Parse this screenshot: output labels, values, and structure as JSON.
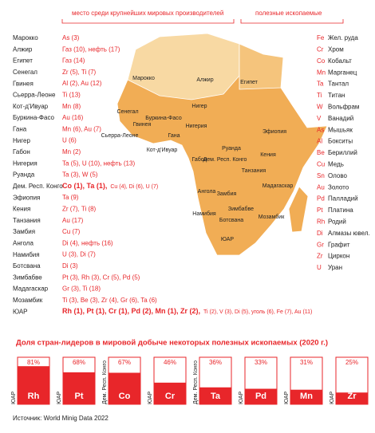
{
  "header": {
    "rank_note": "место среди крупнейших мировых производителей",
    "legend_title": "полезные ископаемые"
  },
  "countries": [
    {
      "name": "Марокко",
      "minerals": "As (3)"
    },
    {
      "name": "Алжир",
      "minerals": "Газ (10), нефть (17)"
    },
    {
      "name": "Египет",
      "minerals": "Газ (14)"
    },
    {
      "name": "Сенегал",
      "minerals": "Zr (5), Ti (7)"
    },
    {
      "name": "Гвинея",
      "minerals": "Al (2), Au (12)"
    },
    {
      "name": "Сьерра-Леоне",
      "minerals": "Ti (13)"
    },
    {
      "name": "Кот-д'Ивуар",
      "minerals": "Mn (8)"
    },
    {
      "name": "Буркина-Фасо",
      "minerals": "Au (16)"
    },
    {
      "name": "Гана",
      "minerals": "Mn (6), Au (7)"
    },
    {
      "name": "Нигер",
      "minerals": "U (6)"
    },
    {
      "name": "Габон",
      "minerals": "Mn (2)"
    },
    {
      "name": "Нигерия",
      "minerals": "Ta (5), U (10), нефть (13)"
    },
    {
      "name": "Руанда",
      "minerals": "Ta (3), W (5)"
    },
    {
      "name": "Дем. Респ. Конго",
      "major": "Co (1), Ta (1),",
      "minerals": "Cu (4), Di (6), U (7)"
    },
    {
      "name": "Эфиопия",
      "minerals": "Ta (9)"
    },
    {
      "name": "Кения",
      "minerals": "Zr (7), Ti (8)"
    },
    {
      "name": "Танзания",
      "minerals": "Au (17)"
    },
    {
      "name": "Замбия",
      "minerals": "Cu (7)"
    },
    {
      "name": "Ангола",
      "minerals": "Di (4), нефть (16)"
    },
    {
      "name": "Намибия",
      "minerals": "U (3), Di (7)"
    },
    {
      "name": "Ботсвана",
      "minerals": "Di (3)"
    },
    {
      "name": "Зимбабве",
      "minerals": "Pt (3), Rh (3), Cr (5), Pd (5)"
    },
    {
      "name": "Мадагаскар",
      "minerals": "Gr (3), Ti (18)"
    },
    {
      "name": "Мозамбик",
      "minerals": "Ti (3), Be (3), Zr (4), Gr (6), Ta (6)"
    },
    {
      "name": "ЮАР",
      "major": "Rh (1), Pt (1), Cr (1), Pd (2), Mn (1), Zr (2),",
      "minerals": "Ti (2), V (3), Di (5), уголь (6), Fe (7), Au (11)"
    }
  ],
  "legend": [
    {
      "symbol": "Fe",
      "name": "Жел. руда"
    },
    {
      "symbol": "Cr",
      "name": "Хром"
    },
    {
      "symbol": "Co",
      "name": "Кобальт"
    },
    {
      "symbol": "Mn",
      "name": "Марганец"
    },
    {
      "symbol": "Ta",
      "name": "Тантал"
    },
    {
      "symbol": "Ti",
      "name": "Титан"
    },
    {
      "symbol": "W",
      "name": "Вольфрам"
    },
    {
      "symbol": "V",
      "name": "Ванадий"
    },
    {
      "symbol": "As",
      "name": "Мышьяк"
    },
    {
      "symbol": "Al",
      "name": "Бокситы"
    },
    {
      "symbol": "Be",
      "name": "Бериллий"
    },
    {
      "symbol": "Cu",
      "name": "Медь"
    },
    {
      "symbol": "Sn",
      "name": "Олово"
    },
    {
      "symbol": "Au",
      "name": "Золото"
    },
    {
      "symbol": "Pd",
      "name": "Палладий"
    },
    {
      "symbol": "Pt",
      "name": "Платина"
    },
    {
      "symbol": "Rh",
      "name": "Родий"
    },
    {
      "symbol": "Di",
      "name": "Алмазы ювел."
    },
    {
      "symbol": "Gr",
      "name": "Графит"
    },
    {
      "symbol": "Zr",
      "name": "Циркон"
    },
    {
      "symbol": "U",
      "name": "Уран"
    }
  ],
  "chart_data": {
    "type": "bar",
    "title": "Доля стран-лидеров в мировой добыче некоторых полезных ископаемых (2020 г.)",
    "categories": [
      "Rh",
      "Pt",
      "Co",
      "Cr",
      "Ta",
      "Pd",
      "Mn",
      "Zr"
    ],
    "countries": [
      "ЮАР",
      "ЮАР",
      "Дем. Респ. Конго",
      "ЮАР",
      "Дем. Респ. Конго",
      "ЮАР",
      "ЮАР",
      "ЮАР"
    ],
    "values": [
      81,
      68,
      67,
      46,
      36,
      33,
      31,
      25
    ],
    "value_labels": [
      "81%",
      "68%",
      "67%",
      "46%",
      "36%",
      "33%",
      "31%",
      "25%"
    ],
    "ylim": [
      0,
      100
    ],
    "color": "#e8262a"
  },
  "source": "Источник: World Minig Data 2022"
}
